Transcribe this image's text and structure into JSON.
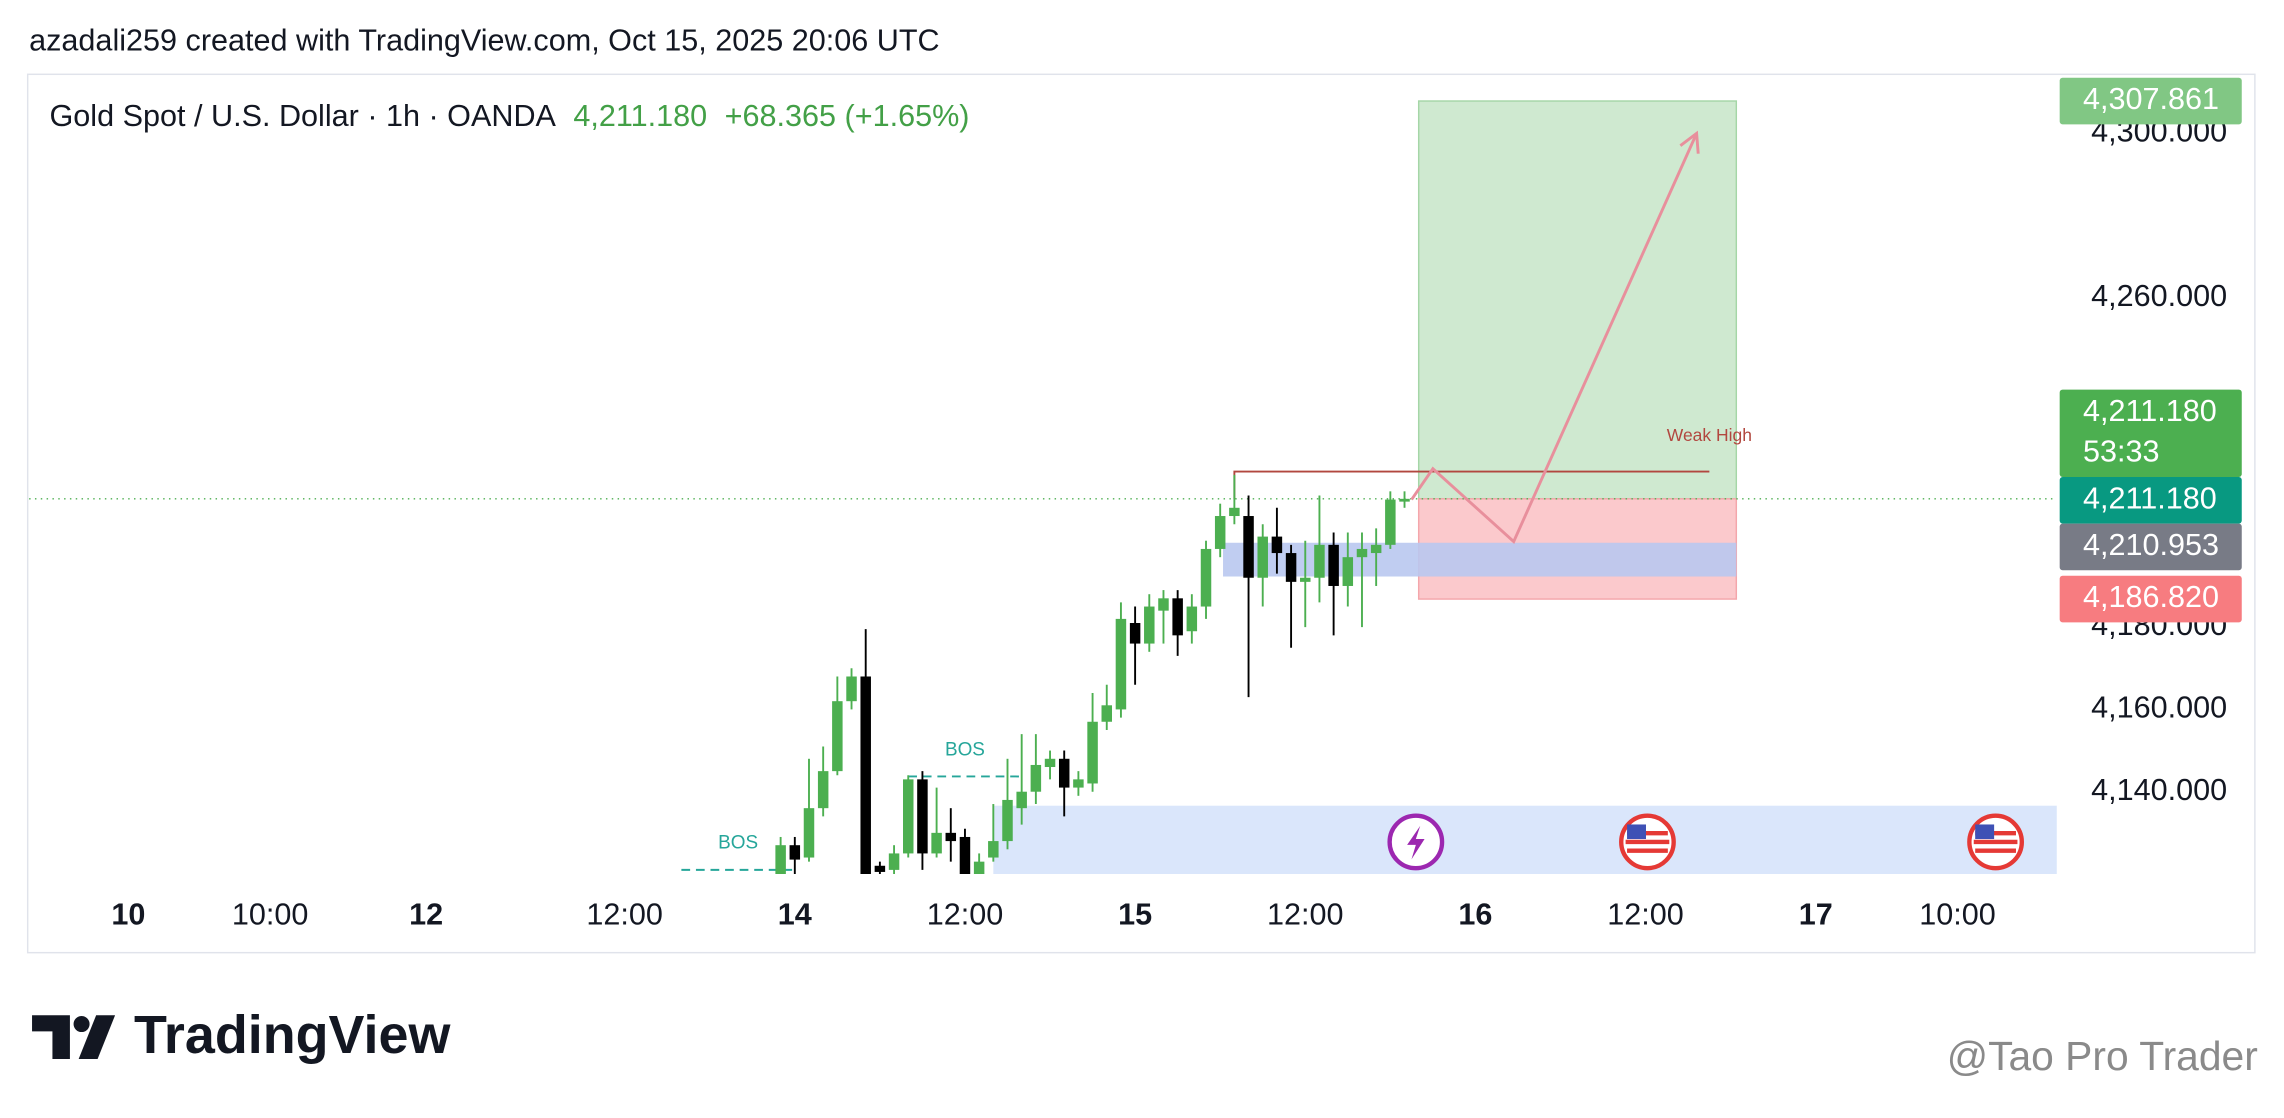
{
  "header": {
    "credit": "azadali259 created with TradingView.com, Oct 15, 2025 20:06 UTC"
  },
  "chart_data": {
    "type": "candlestick",
    "symbol": "Gold Spot / U.S. Dollar · 1h · OANDA",
    "last_price": "4,211.180",
    "change": "+68.365 (+1.65%)",
    "up_color": "#4caf50",
    "down_color": "#000000",
    "x": [
      53,
      54,
      55,
      56,
      57,
      58,
      59,
      60,
      61,
      62,
      63,
      64,
      65,
      66,
      67,
      68,
      69,
      70,
      71,
      72,
      73,
      74,
      75,
      76,
      77,
      78,
      79,
      80,
      81,
      82,
      83,
      84,
      85,
      86,
      87,
      88,
      89,
      90,
      91,
      92,
      93,
      94,
      95,
      96,
      97
    ],
    "open": [
      4120,
      4127,
      4124,
      4136,
      4145,
      4162,
      4168,
      4122,
      4121,
      4125,
      4143,
      4125,
      4130,
      4129,
      4120,
      4124,
      4128,
      4136,
      4140,
      4146,
      4148,
      4141,
      4142,
      4157,
      4160,
      4181,
      4176,
      4184,
      4187,
      4179,
      4185,
      4199,
      4207,
      4207,
      4192,
      4202,
      4198,
      4191,
      4192,
      4200,
      4190,
      4197,
      4198,
      4200,
      4210.5
    ],
    "high": [
      4129,
      4129,
      4148,
      4151,
      4168,
      4170,
      4179.5,
      4123,
      4127,
      4144,
      4145,
      4141,
      4136,
      4131,
      4125,
      4137,
      4148,
      4154,
      4154,
      4150,
      4150,
      4145,
      4164,
      4166,
      4186,
      4185,
      4188,
      4189,
      4189,
      4188,
      4201,
      4210,
      4217,
      4212,
      4205,
      4209,
      4200,
      4201,
      4212,
      4203,
      4203,
      4203,
      4204,
      4213,
      4213
    ],
    "low": [
      4120,
      4120,
      4123,
      4134,
      4144,
      4160,
      4120,
      4120,
      4120,
      4124,
      4121,
      4124,
      4123,
      4120,
      4120,
      4123,
      4126,
      4132,
      4137,
      4143,
      4134,
      4139,
      4140,
      4155,
      4158,
      4166,
      4174,
      4176,
      4173,
      4176,
      4182,
      4197,
      4205,
      4163,
      4185,
      4193,
      4175,
      4180,
      4186,
      4178,
      4185,
      4180,
      4190,
      4199,
      4209
    ],
    "close": [
      4127,
      4123.5,
      4136,
      4145,
      4162,
      4168,
      4120,
      4120.5,
      4125,
      4143,
      4125,
      4130,
      4128,
      4120,
      4123,
      4128,
      4138,
      4140,
      4146.5,
      4148,
      4141,
      4143,
      4157,
      4161,
      4182,
      4176,
      4185,
      4187,
      4178,
      4185,
      4199,
      4207,
      4209,
      4192,
      4202,
      4198,
      4191,
      4192,
      4200,
      4190,
      4197,
      4199,
      4200,
      4211,
      4211.18
    ],
    "xlim": [
      0,
      143
    ],
    "xticks": [
      {
        "value": 7,
        "label": "10"
      },
      {
        "value": 17,
        "label": "10:00"
      },
      {
        "value": 28,
        "label": "12"
      },
      {
        "value": 42,
        "label": "12:00"
      },
      {
        "value": 54,
        "label": "14"
      },
      {
        "value": 66,
        "label": "12:00"
      },
      {
        "value": 78,
        "label": "15"
      },
      {
        "value": 90,
        "label": "12:00"
      },
      {
        "value": 102,
        "label": "16"
      },
      {
        "value": 114,
        "label": "12:00"
      },
      {
        "value": 126,
        "label": "17"
      },
      {
        "value": 136,
        "label": "10:00"
      }
    ],
    "ylim": [
      4120,
      4314
    ],
    "yticks": [
      {
        "value": 4140,
        "label": "4,140.000"
      },
      {
        "value": 4160,
        "label": "4,160.000"
      },
      {
        "value": 4180,
        "label": "4,180.000"
      },
      {
        "value": 4260,
        "label": "4,260.000"
      },
      {
        "value": 4300,
        "label": "4,300.000"
      }
    ],
    "last_price_line": 4211.18,
    "position": {
      "x": [
        98,
        120.4
      ],
      "entry": 4211.18,
      "target": 4307.861,
      "stop": 4186.82,
      "profit_color": "#cfe9d0",
      "loss_color": "#fbc9cc"
    },
    "zones": [
      {
        "x": [
          84.2,
          120.4
        ],
        "y": [
          4192.3,
          4200.5
        ],
        "color": "#b9c8f0"
      },
      {
        "x": [
          68,
          143
        ],
        "y": [
          4120,
          4136.6
        ],
        "color": "#d6e3fb"
      }
    ],
    "weak_high": {
      "label": "Weak High",
      "value": 4217.8,
      "x": [
        85,
        118.5
      ],
      "color": "#b2473f"
    },
    "bos": [
      {
        "label": "BOS",
        "value": 4143.7,
        "x": [
          62,
          70
        ]
      },
      {
        "label": "BOS",
        "value": 4121,
        "x": [
          46,
          54
        ]
      }
    ],
    "projection": {
      "x": [
        97.5,
        99,
        104.7,
        117.6
      ],
      "y": [
        4211,
        4218.5,
        4200.8,
        4300
      ],
      "color": "#e88f9c"
    },
    "badges": [
      {
        "value": 4307.861,
        "label": "4,307.861",
        "color": "#81c784"
      },
      {
        "value": 4211.18,
        "label": "4,211.180",
        "countdown": "53:33",
        "color": "#4caf50"
      },
      {
        "value": 4211.18,
        "label": "4,211.180",
        "color": "#089981"
      },
      {
        "value": 4210.953,
        "label": "4,210.953",
        "color": "#787b86"
      },
      {
        "value": 4186.82,
        "label": "4,186.820",
        "color": "#f77c80"
      }
    ]
  },
  "footer": {
    "brand": "TradingView",
    "watermark": "@Tao Pro Trader"
  }
}
